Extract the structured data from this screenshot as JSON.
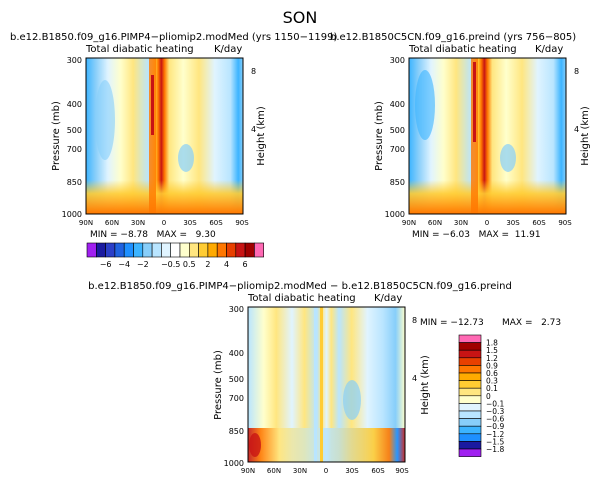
{
  "figure_title": "SON",
  "chart_data": [
    {
      "type": "heatmap",
      "title": "b.e12.B1850.f09_g16.PIMP4−pliomip2.modMed (yrs 1150−1199)",
      "subtitle": "Total diabatic heating",
      "units": "K/day",
      "xlabel": "",
      "ylabel": "Pressure (mb)",
      "ylabel_right": "Height (km)",
      "x_ticks": [
        "90N",
        "60N",
        "30N",
        "0",
        "30S",
        "60S",
        "90S"
      ],
      "y_ticks": [
        "300",
        "400",
        "500",
        "700",
        "850",
        "1000"
      ],
      "y_ticks_right": [
        "8",
        "4"
      ],
      "y_scale": "log",
      "ylim": [
        1000,
        300
      ],
      "stats": "MIN = −8.78   MAX =   9.30",
      "colorbar": {
        "orientation": "horizontal",
        "labels": [
          "−6",
          "−4",
          "−2",
          "−0.5",
          "0.5",
          "2",
          "4",
          "6"
        ],
        "colors": [
          "#a020f0",
          "#1a1aa0",
          "#2a3ec8",
          "#1f62e0",
          "#1e90ff",
          "#3cb4ff",
          "#87cefa",
          "#b9e5ff",
          "#e0f4ff",
          "#ffffff",
          "#ffffcc",
          "#ffe680",
          "#ffcc33",
          "#ffaa00",
          "#ff7700",
          "#e84000",
          "#c81414",
          "#a00000",
          "#ff69b4"
        ]
      }
    },
    {
      "type": "heatmap",
      "title": "b.e12.B1850C5CN.f09_g16.preind (yrs 756−805)",
      "subtitle": "Total diabatic heating",
      "units": "K/day",
      "xlabel": "",
      "ylabel": "Pressure (mb)",
      "ylabel_right": "Height (km)",
      "x_ticks": [
        "90N",
        "60N",
        "30N",
        "0",
        "30S",
        "60S",
        "90S"
      ],
      "y_ticks": [
        "300",
        "400",
        "500",
        "700",
        "850",
        "1000"
      ],
      "y_ticks_right": [
        "8",
        "4"
      ],
      "y_scale": "log",
      "ylim": [
        1000,
        300
      ],
      "stats": "MIN = −6.03   MAX =  11.91"
    },
    {
      "type": "heatmap",
      "title": "b.e12.B1850.f09_g16.PIMP4−pliomip2.modMed − b.e12.B1850C5CN.f09_g16.preind",
      "subtitle": "Total diabatic heating",
      "units": "K/day",
      "xlabel": "",
      "ylabel": "Pressure (mb)",
      "ylabel_right": "Height (km)",
      "x_ticks": [
        "90N",
        "60N",
        "30N",
        "0",
        "30S",
        "60S",
        "90S"
      ],
      "y_ticks": [
        "300",
        "400",
        "500",
        "700",
        "850",
        "1000"
      ],
      "y_ticks_right": [
        "8",
        "4"
      ],
      "y_scale": "log",
      "ylim": [
        1000,
        300
      ],
      "stats_min": "MIN = −12.73",
      "stats_max": "MAX =   2.73",
      "colorbar": {
        "orientation": "vertical",
        "labels": [
          "1.8",
          "1.5",
          "1.2",
          "0.9",
          "0.6",
          "0.3",
          "0.1",
          "0",
          "−0.1",
          "−0.3",
          "−0.6",
          "−0.9",
          "−1.2",
          "−1.5",
          "−1.8"
        ],
        "colors": [
          "#ff69b4",
          "#a00000",
          "#c81414",
          "#e84000",
          "#ff7700",
          "#ffaa00",
          "#ffcc33",
          "#ffe680",
          "#ffffcc",
          "#e0f4ff",
          "#b9e5ff",
          "#87cefa",
          "#3cb4ff",
          "#1e90ff",
          "#1a1aa0",
          "#a020f0"
        ]
      }
    }
  ]
}
